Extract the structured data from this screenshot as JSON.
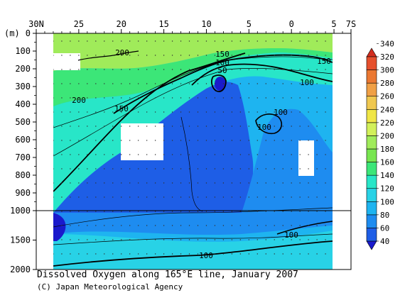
{
  "chart_data": {
    "type": "heatmap",
    "title": "Dissolved Oxygen along 165°E line, January 2007",
    "credit": "(C) Japan Meteorological Agency",
    "x_ticks": [
      "30N",
      "25",
      "20",
      "15",
      "10",
      "5",
      "0",
      "5",
      "7S"
    ],
    "y_unit": "(m)",
    "y_ticks_upper": [
      "0",
      "100",
      "200",
      "300",
      "400",
      "500",
      "600",
      "700",
      "800",
      "900",
      "1000"
    ],
    "y_ticks_lower": [
      "1500",
      "2000"
    ],
    "upper_depth_range": [
      0,
      1000
    ],
    "lower_depth_range": [
      1000,
      2000
    ],
    "colorbar_levels": [
      40,
      60,
      80,
      100,
      120,
      140,
      160,
      180,
      200,
      220,
      240,
      260,
      280,
      300,
      320,
      340
    ],
    "colorbar_colors": [
      "#1a1acc",
      "#1e5ee6",
      "#1e8cf0",
      "#1eb4f0",
      "#28d2e6",
      "#28e6c8",
      "#3ce678",
      "#78e650",
      "#a0eb5a",
      "#d2f05a",
      "#f0e646",
      "#f0c850",
      "#f0a046",
      "#eb7832",
      "#e6502d",
      "#d22d1e"
    ],
    "contour_labels": [
      {
        "text": "200"
      },
      {
        "text": "150"
      },
      {
        "text": "100"
      },
      {
        "text": "50"
      },
      {
        "text": "150"
      },
      {
        "text": "100"
      },
      {
        "text": "200"
      },
      {
        "text": "150"
      },
      {
        "text": "100"
      },
      {
        "text": "100"
      },
      {
        "text": "100"
      },
      {
        "text": "100"
      }
    ]
  }
}
